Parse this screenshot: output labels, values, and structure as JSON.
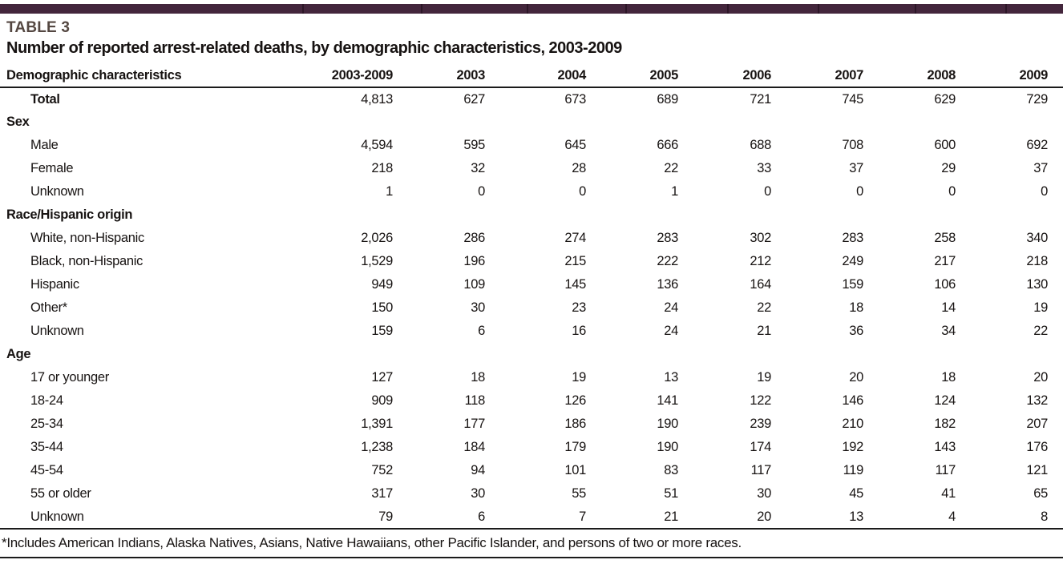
{
  "page": {
    "table_label": "TABLE 3",
    "title": "Number of reported arrest-related deaths, by demographic characteristics, 2003-2009",
    "footnote": "*Includes American Indians, Alaska Natives, Asians, Native Hawaiians, other Pacific Islander, and persons of two or more races.",
    "colors": {
      "accent_bar": "#43263c",
      "accent_bar_divider": "#2c1627",
      "table_label_text": "#544741",
      "body_text": "#171312",
      "rule_lines": "#1b1b1b"
    }
  },
  "table": {
    "columns": [
      "Demographic characteristics",
      "2003-2009",
      "2003",
      "2004",
      "2005",
      "2006",
      "2007",
      "2008",
      "2009"
    ],
    "rows": [
      {
        "label": "Total",
        "type": "total",
        "values": [
          "4,813",
          "627",
          "673",
          "689",
          "721",
          "745",
          "629",
          "729"
        ]
      },
      {
        "label": "Sex",
        "type": "section",
        "values": []
      },
      {
        "label": "Male",
        "type": "data",
        "values": [
          "4,594",
          "595",
          "645",
          "666",
          "688",
          "708",
          "600",
          "692"
        ]
      },
      {
        "label": "Female",
        "type": "data",
        "values": [
          "218",
          "32",
          "28",
          "22",
          "33",
          "37",
          "29",
          "37"
        ]
      },
      {
        "label": "Unknown",
        "type": "data",
        "values": [
          "1",
          "0",
          "0",
          "1",
          "0",
          "0",
          "0",
          "0"
        ]
      },
      {
        "label": "Race/Hispanic origin",
        "type": "section",
        "values": []
      },
      {
        "label": "White, non-Hispanic",
        "type": "data",
        "values": [
          "2,026",
          "286",
          "274",
          "283",
          "302",
          "283",
          "258",
          "340"
        ]
      },
      {
        "label": "Black, non-Hispanic",
        "type": "data",
        "values": [
          "1,529",
          "196",
          "215",
          "222",
          "212",
          "249",
          "217",
          "218"
        ]
      },
      {
        "label": "Hispanic",
        "type": "data",
        "values": [
          "949",
          "109",
          "145",
          "136",
          "164",
          "159",
          "106",
          "130"
        ]
      },
      {
        "label": "Other*",
        "type": "data",
        "values": [
          "150",
          "30",
          "23",
          "24",
          "22",
          "18",
          "14",
          "19"
        ]
      },
      {
        "label": "Unknown",
        "type": "data",
        "values": [
          "159",
          "6",
          "16",
          "24",
          "21",
          "36",
          "34",
          "22"
        ]
      },
      {
        "label": "Age",
        "type": "section",
        "values": []
      },
      {
        "label": "17 or younger",
        "type": "data",
        "values": [
          "127",
          "18",
          "19",
          "13",
          "19",
          "20",
          "18",
          "20"
        ]
      },
      {
        "label": "18-24",
        "type": "data",
        "values": [
          "909",
          "118",
          "126",
          "141",
          "122",
          "146",
          "124",
          "132"
        ]
      },
      {
        "label": "25-34",
        "type": "data",
        "values": [
          "1,391",
          "177",
          "186",
          "190",
          "239",
          "210",
          "182",
          "207"
        ]
      },
      {
        "label": "35-44",
        "type": "data",
        "values": [
          "1,238",
          "184",
          "179",
          "190",
          "174",
          "192",
          "143",
          "176"
        ]
      },
      {
        "label": "45-54",
        "type": "data",
        "values": [
          "752",
          "94",
          "101",
          "83",
          "117",
          "119",
          "117",
          "121"
        ]
      },
      {
        "label": "55 or older",
        "type": "data",
        "values": [
          "317",
          "30",
          "55",
          "51",
          "30",
          "45",
          "41",
          "65"
        ]
      },
      {
        "label": "Unknown",
        "type": "data",
        "values": [
          "79",
          "6",
          "7",
          "21",
          "20",
          "13",
          "4",
          "8"
        ]
      }
    ]
  }
}
